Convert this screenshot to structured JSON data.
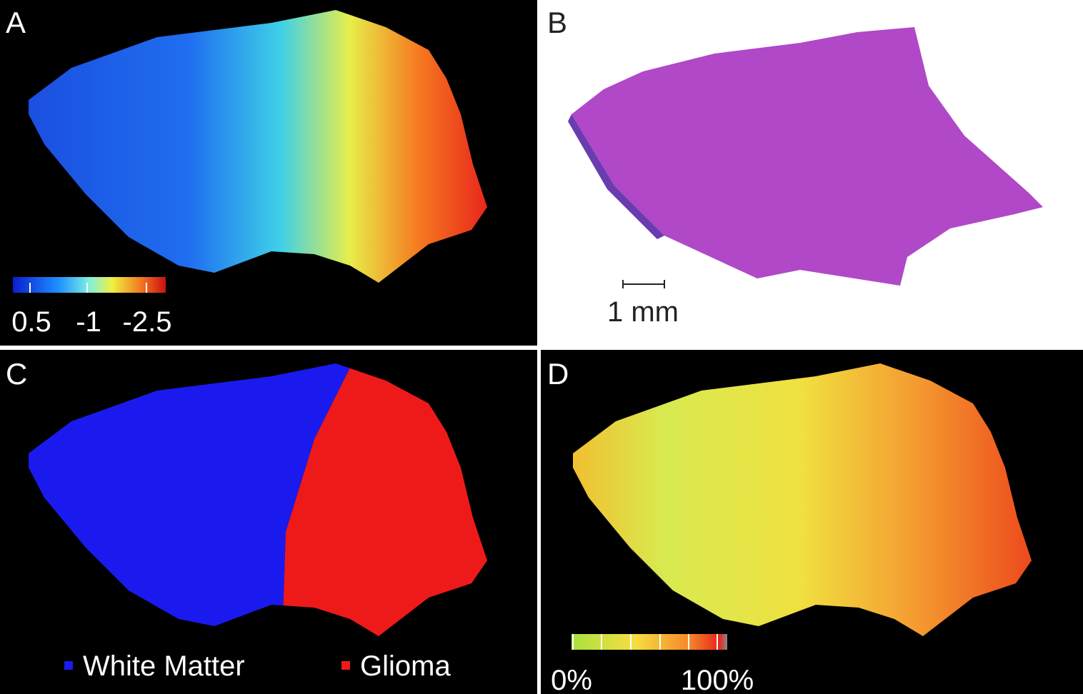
{
  "panels": [
    {
      "label": "A",
      "colorbar": {
        "tick_labels": [
          "0.5",
          "-1",
          "-2.5"
        ]
      }
    },
    {
      "label": "B",
      "scale_bar": "1 mm"
    },
    {
      "label": "C",
      "legend": [
        "White Matter",
        "Glioma"
      ]
    },
    {
      "label": "D",
      "colorbar": {
        "tick_labels": [
          "0%",
          "100%"
        ]
      }
    }
  ]
}
